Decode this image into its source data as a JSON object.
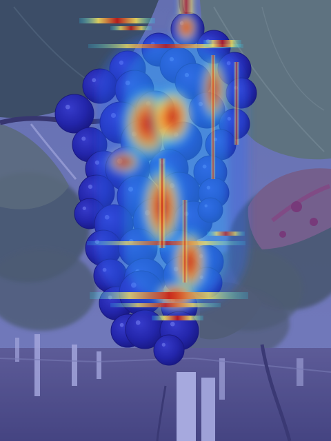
{
  "image": {
    "subject": "grape-cluster-on-vine",
    "overlay": "attention-heatmap",
    "overlay_colormap": [
      "#1a1aa8",
      "#2f6bff",
      "#28d7ff",
      "#ffe85a",
      "#ff7a1a",
      "#c8140f"
    ],
    "palette": {
      "sky": "#6f7fa6",
      "leaf_dark": "#465a4a",
      "leaf_light": "#7f9a78",
      "leaf_rust": "#8f4e6a",
      "ground": "#5a5878",
      "stakes": "#c9cde2",
      "grape": "#2b2ea0"
    }
  }
}
